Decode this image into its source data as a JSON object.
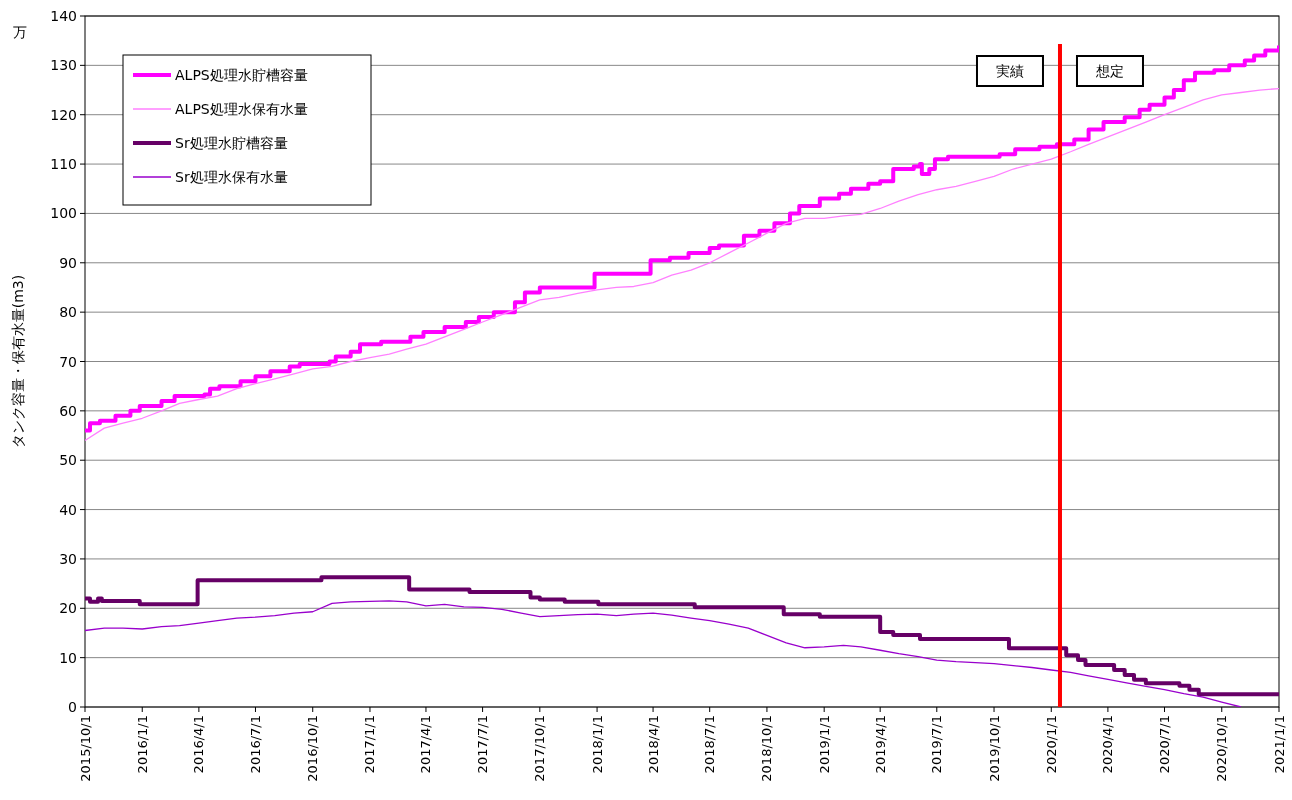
{
  "chart_data": {
    "type": "line",
    "ylabel": "タンク容量・保有水量(m3)",
    "xlim": [
      "2015-10-01",
      "2021-01-01"
    ],
    "ylim": [
      0,
      140
    ],
    "yticks": [
      0,
      10,
      20,
      30,
      40,
      50,
      60,
      70,
      80,
      90,
      100,
      110,
      120,
      130,
      140
    ],
    "xticks": [
      {
        "value": "2015-10-01",
        "label": "2015/10/1"
      },
      {
        "value": "2016-01-01",
        "label": "2016/1/1"
      },
      {
        "value": "2016-04-01",
        "label": "2016/4/1"
      },
      {
        "value": "2016-07-01",
        "label": "2016/7/1"
      },
      {
        "value": "2016-10-01",
        "label": "2016/10/1"
      },
      {
        "value": "2017-01-01",
        "label": "2017/1/1"
      },
      {
        "value": "2017-04-01",
        "label": "2017/4/1"
      },
      {
        "value": "2017-07-01",
        "label": "2017/7/1"
      },
      {
        "value": "2017-10-01",
        "label": "2017/10/1"
      },
      {
        "value": "2018-01-01",
        "label": "2018/1/1"
      },
      {
        "value": "2018-04-01",
        "label": "2018/4/1"
      },
      {
        "value": "2018-07-01",
        "label": "2018/7/1"
      },
      {
        "value": "2018-10-01",
        "label": "2018/10/1"
      },
      {
        "value": "2019-01-01",
        "label": "2019/1/1"
      },
      {
        "value": "2019-04-01",
        "label": "2019/4/1"
      },
      {
        "value": "2019-07-01",
        "label": "2019/7/1"
      },
      {
        "value": "2019-10-01",
        "label": "2019/10/1"
      },
      {
        "value": "2020-01-01",
        "label": "2020/1/1"
      },
      {
        "value": "2020-04-01",
        "label": "2020/4/1"
      },
      {
        "value": "2020-07-01",
        "label": "2020/7/1"
      },
      {
        "value": "2020-10-01",
        "label": "2020/10/1"
      },
      {
        "value": "2021-01-01",
        "label": "2021/1/1"
      }
    ],
    "grid": "y",
    "legend": "top left",
    "annotations": [
      "万",
      "実績",
      "想定"
    ],
    "ref_lines": [
      {
        "axis": "x",
        "value": "2020-01-15",
        "color": "#ff0000"
      }
    ],
    "series": [
      {
        "name": "ALPS処理水貯槽容量",
        "color": "#ff00ff",
        "type": "step",
        "x": [
          "2015-10-01",
          "2015-10-09",
          "2015-10-25",
          "2015-11-19",
          "2015-12-13",
          "2015-12-28",
          "2016-02-01",
          "2016-02-22",
          "2016-04-10",
          "2016-04-19",
          "2016-05-04",
          "2016-06-07",
          "2016-07-01",
          "2016-07-25",
          "2016-08-25",
          "2016-09-10",
          "2016-10-28",
          "2016-11-07",
          "2016-12-01",
          "2016-12-16",
          "2017-01-19",
          "2017-03-07",
          "2017-03-28",
          "2017-05-01",
          "2017-06-04",
          "2017-06-25",
          "2017-07-19",
          "2017-08-22",
          "2017-09-07",
          "2017-10-01",
          "2017-12-28",
          "2018-03-28",
          "2018-04-28",
          "2018-05-28",
          "2018-07-01",
          "2018-07-16",
          "2018-08-25",
          "2018-09-19",
          "2018-10-13",
          "2018-11-07",
          "2018-11-22",
          "2018-12-25",
          "2019-01-25",
          "2019-02-13",
          "2019-03-13",
          "2019-04-01",
          "2019-04-22",
          "2019-05-25",
          "2019-06-04",
          "2019-06-07",
          "2019-06-19",
          "2019-06-28",
          "2019-07-19",
          "2019-10-10",
          "2019-11-04",
          "2019-12-13",
          "2020-01-10",
          "2020-02-07",
          "2020-03-01",
          "2020-03-25",
          "2020-04-28",
          "2020-05-22",
          "2020-06-07",
          "2020-07-01",
          "2020-07-16",
          "2020-08-01",
          "2020-08-19",
          "2020-09-19",
          "2020-10-13",
          "2020-11-07",
          "2020-11-22",
          "2020-12-10",
          "2021-01-01"
        ],
        "values": [
          56,
          57.5,
          58,
          59,
          60,
          61,
          62,
          63,
          63.3,
          64.5,
          65,
          66,
          67,
          68,
          69,
          69.5,
          70,
          71,
          72,
          73.5,
          74,
          75,
          76,
          77,
          78,
          79,
          80,
          82,
          84,
          85,
          87.8,
          90.5,
          91,
          92,
          93,
          93.5,
          95.5,
          96.5,
          98,
          100,
          101.5,
          103,
          104,
          105,
          106,
          106.5,
          109,
          109.5,
          110,
          108,
          109,
          111,
          111.5,
          112,
          113,
          113.5,
          114,
          115,
          117,
          118.5,
          119.5,
          121,
          122,
          123.5,
          125,
          127,
          128.5,
          129,
          130,
          131,
          132,
          133,
          134
        ]
      },
      {
        "name": "ALPS処理水保有水量",
        "color": "#ff80ff",
        "x": [
          "2015-10-01",
          "2015-11-01",
          "2015-12-01",
          "2016-01-01",
          "2016-02-01",
          "2016-03-01",
          "2016-04-01",
          "2016-05-01",
          "2016-06-01",
          "2016-07-01",
          "2016-08-01",
          "2016-09-01",
          "2016-10-01",
          "2016-11-01",
          "2016-12-01",
          "2017-01-01",
          "2017-02-01",
          "2017-03-01",
          "2017-04-01",
          "2017-05-01",
          "2017-06-01",
          "2017-07-01",
          "2017-08-01",
          "2017-09-01",
          "2017-10-01",
          "2017-11-01",
          "2017-12-01",
          "2018-01-01",
          "2018-02-01",
          "2018-03-01",
          "2018-04-01",
          "2018-05-01",
          "2018-06-01",
          "2018-07-01",
          "2018-08-01",
          "2018-09-01",
          "2018-10-01",
          "2018-11-01",
          "2018-12-01",
          "2019-01-01",
          "2019-02-01",
          "2019-03-01",
          "2019-04-01",
          "2019-05-01",
          "2019-06-01",
          "2019-07-01",
          "2019-08-01",
          "2019-09-01",
          "2019-10-01",
          "2019-11-01",
          "2019-12-01",
          "2020-01-01",
          "2020-02-01",
          "2020-03-01",
          "2020-04-01",
          "2020-05-01",
          "2020-06-01",
          "2020-07-01",
          "2020-08-01",
          "2020-09-01",
          "2020-10-01",
          "2020-11-01",
          "2020-12-01",
          "2021-01-01"
        ],
        "values": [
          54,
          56.5,
          57.5,
          58.5,
          60,
          61.5,
          62.3,
          63,
          64.5,
          65.5,
          66.5,
          67.5,
          68.5,
          69,
          70,
          70.8,
          71.5,
          72.5,
          73.5,
          75,
          76.5,
          78,
          79.5,
          81,
          82.5,
          83,
          83.8,
          84.5,
          85,
          85.2,
          86,
          87.5,
          88.5,
          90,
          92,
          94,
          96,
          98,
          99,
          99,
          99.5,
          99.8,
          101,
          102.5,
          103.8,
          104.8,
          105.5,
          106.5,
          107.5,
          109,
          110,
          111,
          112.5,
          114,
          115.5,
          117,
          118.5,
          120,
          121.5,
          123,
          124,
          124.5,
          125,
          125.3
        ]
      },
      {
        "name": "Sr処理水貯槽容量",
        "color": "#660066",
        "type": "step",
        "x": [
          "2015-10-01",
          "2015-10-09",
          "2015-10-22",
          "2015-10-28",
          "2015-12-28",
          "2016-03-30",
          "2016-10-15",
          "2017-03-05",
          "2017-06-10",
          "2017-09-16",
          "2017-10-01",
          "2017-11-10",
          "2018-01-03",
          "2018-06-07",
          "2018-10-28",
          "2018-12-25",
          "2019-04-01",
          "2019-04-22",
          "2019-06-04",
          "2019-10-25",
          "2020-01-25",
          "2020-02-13",
          "2020-02-25",
          "2020-04-11",
          "2020-04-28",
          "2020-05-13",
          "2020-06-01",
          "2020-07-25",
          "2020-08-10",
          "2020-08-25",
          "2021-01-01"
        ],
        "values": [
          22,
          21.3,
          22,
          21.5,
          20.8,
          25.7,
          26.3,
          23.8,
          23.3,
          22.2,
          21.8,
          21.3,
          20.8,
          20.2,
          18.8,
          18.3,
          15.2,
          14.6,
          13.8,
          11.9,
          10.5,
          9.5,
          8.5,
          7.5,
          6.5,
          5.5,
          4.8,
          4.3,
          3.5,
          2.6,
          2.6
        ]
      },
      {
        "name": "Sr処理水保有水量",
        "color": "#9900cc",
        "x": [
          "2015-10-01",
          "2015-11-01",
          "2015-12-01",
          "2016-01-01",
          "2016-02-01",
          "2016-03-01",
          "2016-04-01",
          "2016-05-01",
          "2016-06-01",
          "2016-07-01",
          "2016-08-01",
          "2016-09-01",
          "2016-10-01",
          "2016-11-01",
          "2016-12-01",
          "2017-01-01",
          "2017-02-01",
          "2017-03-01",
          "2017-04-01",
          "2017-05-01",
          "2017-06-01",
          "2017-07-01",
          "2017-08-01",
          "2017-09-01",
          "2017-10-01",
          "2017-11-01",
          "2017-12-01",
          "2018-01-01",
          "2018-02-01",
          "2018-03-01",
          "2018-04-01",
          "2018-05-01",
          "2018-06-01",
          "2018-07-01",
          "2018-08-01",
          "2018-09-01",
          "2018-10-01",
          "2018-11-01",
          "2018-12-01",
          "2019-01-01",
          "2019-02-01",
          "2019-03-01",
          "2019-04-01",
          "2019-05-01",
          "2019-06-01",
          "2019-07-01",
          "2019-08-01",
          "2019-09-01",
          "2019-10-01",
          "2019-11-01",
          "2019-12-01",
          "2020-01-01",
          "2020-02-01",
          "2020-03-01",
          "2020-04-01",
          "2020-05-01",
          "2020-06-01",
          "2020-07-01",
          "2020-08-01",
          "2020-09-01",
          "2020-10-01",
          "2020-11-01"
        ],
        "values": [
          15.5,
          16,
          16,
          15.8,
          16.3,
          16.5,
          17,
          17.5,
          18,
          18.2,
          18.5,
          19,
          19.3,
          21,
          21.3,
          21.4,
          21.5,
          21.3,
          20.5,
          20.8,
          20.3,
          20.2,
          19.8,
          19,
          18.3,
          18.5,
          18.7,
          18.8,
          18.5,
          18.8,
          19,
          18.6,
          18,
          17.5,
          16.8,
          16,
          14.5,
          13,
          12,
          12.2,
          12.5,
          12.2,
          11.5,
          10.8,
          10.2,
          9.5,
          9.2,
          9,
          8.8,
          8.4,
          8,
          7.5,
          7,
          6.3,
          5.6,
          4.9,
          4.2,
          3.5,
          2.7,
          2,
          1,
          0
        ]
      }
    ]
  }
}
